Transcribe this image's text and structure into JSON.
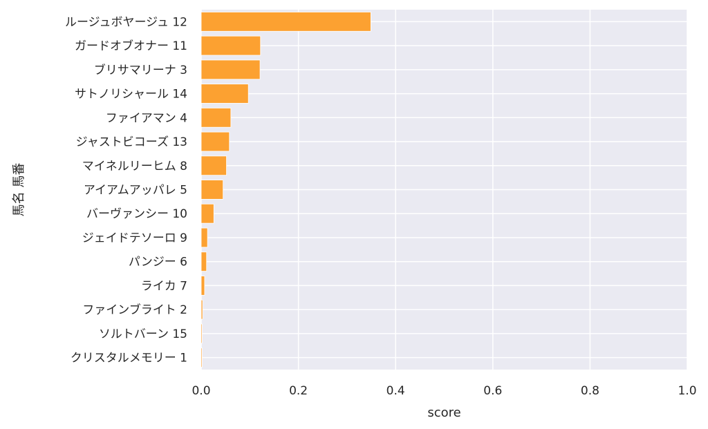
{
  "chart_data": {
    "type": "bar",
    "orientation": "horizontal",
    "categories": [
      "ルージュボヤージュ 12",
      "ガードオブオナー 11",
      "ブリサマリーナ 3",
      "サトノリシャール 14",
      "ファイアマン 4",
      "ジャストビコーズ 13",
      "マイネルリーヒム 8",
      "アイアムアッパレ 5",
      "バーヴァンシー 10",
      "ジェイドテソーロ 9",
      "パンジー 6",
      "ライカ 7",
      "ファインブライト 2",
      "ソルトバーン 15",
      "クリスタルメモリー 1"
    ],
    "values": [
      0.349,
      0.122,
      0.121,
      0.097,
      0.061,
      0.058,
      0.052,
      0.045,
      0.026,
      0.013,
      0.011,
      0.007,
      0.003,
      0.002,
      0.002
    ],
    "xlabel": "score",
    "ylabel": "馬名 馬番",
    "xlim": [
      0.0,
      1.0
    ],
    "xticks": [
      "0.0",
      "0.2",
      "0.4",
      "0.6",
      "0.8",
      "1.0"
    ],
    "grid": true,
    "colors": {
      "bar": "#FCA131",
      "plot_background": "#EAEAF2",
      "grid": "#FFFFFF",
      "text": "#262626"
    }
  }
}
